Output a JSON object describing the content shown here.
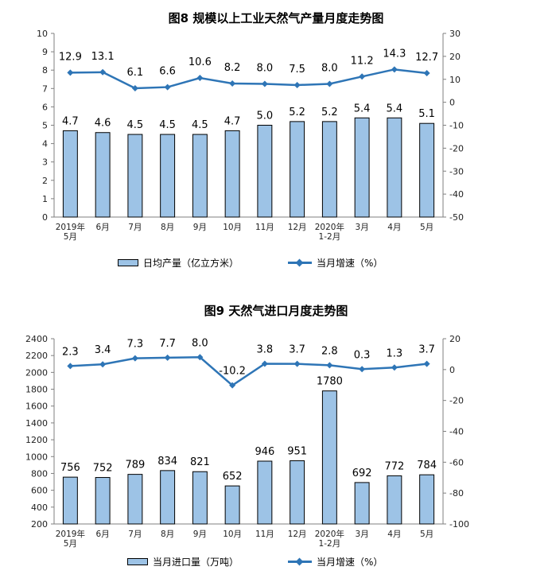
{
  "chart_data": [
    {
      "type": "bar",
      "title": "图8  规模以上工业天然气产量月度走势图",
      "categories": [
        "2019年\n5月",
        "6月",
        "7月",
        "8月",
        "9月",
        "10月",
        "11月",
        "12月",
        "2020年\n1-2月",
        "3月",
        "4月",
        "5月"
      ],
      "series": [
        {
          "name": "日均产量（亿立方米）",
          "type": "bar",
          "axis": "left",
          "values": [
            4.7,
            4.6,
            4.5,
            4.5,
            4.5,
            4.7,
            5.0,
            5.2,
            5.2,
            5.4,
            5.4,
            5.1
          ]
        },
        {
          "name": "当月增速（%）",
          "type": "line",
          "axis": "right",
          "values": [
            12.9,
            13.1,
            6.1,
            6.6,
            10.6,
            8.2,
            8.0,
            7.5,
            8.0,
            11.2,
            14.3,
            12.7
          ]
        }
      ],
      "bar_labels": [
        "4.7",
        "4.6",
        "4.5",
        "4.5",
        "4.5",
        "4.7",
        "5.0",
        "5.2",
        "5.2",
        "5.4",
        "5.4",
        "5.1"
      ],
      "line_labels": [
        "12.9",
        "13.1",
        "6.1",
        "6.6",
        "10.6",
        "8.2",
        "8.0",
        "7.5",
        "8.0",
        "11.2",
        "14.3",
        "12.7"
      ],
      "ylim_left": [
        0,
        10
      ],
      "yticks_left": [
        "0",
        "1",
        "2",
        "3",
        "4",
        "5",
        "6",
        "7",
        "8",
        "9",
        "10"
      ],
      "ylim_right": [
        -50,
        30
      ],
      "yticks_right": [
        "-50",
        "-40",
        "-30",
        "-20",
        "-10",
        "0",
        "10",
        "20",
        "30"
      ],
      "grid": false,
      "legend_position": "bottom"
    },
    {
      "type": "bar",
      "title": "图9  天然气进口月度走势图",
      "categories": [
        "2019年\n5月",
        "6月",
        "7月",
        "8月",
        "9月",
        "10月",
        "11月",
        "12月",
        "2020年\n1-2月",
        "3月",
        "4月",
        "5月"
      ],
      "series": [
        {
          "name": "当月进口量（万吨）",
          "type": "bar",
          "axis": "left",
          "values": [
            756,
            752,
            789,
            834,
            821,
            652,
            946,
            951,
            1780,
            692,
            772,
            784
          ]
        },
        {
          "name": "当月增速（%）",
          "type": "line",
          "axis": "right",
          "values": [
            2.3,
            3.4,
            7.3,
            7.7,
            8.0,
            -10.2,
            3.8,
            3.7,
            2.8,
            0.3,
            1.3,
            3.7
          ]
        }
      ],
      "bar_labels": [
        "756",
        "752",
        "789",
        "834",
        "821",
        "652",
        "946",
        "951",
        "1780",
        "692",
        "772",
        "784"
      ],
      "line_labels": [
        "2.3",
        "3.4",
        "7.3",
        "7.7",
        "8.0",
        "-10.2",
        "3.8",
        "3.7",
        "2.8",
        "0.3",
        "1.3",
        "3.7"
      ],
      "ylim_left": [
        200,
        2400
      ],
      "yticks_left": [
        "200",
        "400",
        "600",
        "800",
        "1000",
        "1200",
        "1400",
        "1600",
        "1800",
        "2000",
        "2200",
        "2400"
      ],
      "ylim_right": [
        -100,
        20
      ],
      "yticks_right": [
        "-100",
        "-80",
        "-60",
        "-40",
        "-20",
        "0",
        "20"
      ],
      "grid": false,
      "legend_position": "bottom"
    }
  ],
  "colors": {
    "bar_fill": "#9dc3e6",
    "bar_stroke": "#000000",
    "line": "#2e75b6",
    "axis": "#7f7f7f"
  }
}
